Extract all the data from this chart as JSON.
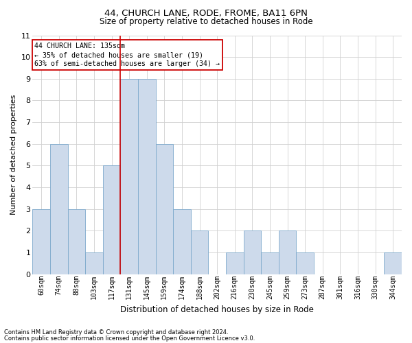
{
  "title1": "44, CHURCH LANE, RODE, FROME, BA11 6PN",
  "title2": "Size of property relative to detached houses in Rode",
  "xlabel": "Distribution of detached houses by size in Rode",
  "ylabel": "Number of detached properties",
  "categories": [
    "60sqm",
    "74sqm",
    "88sqm",
    "103sqm",
    "117sqm",
    "131sqm",
    "145sqm",
    "159sqm",
    "174sqm",
    "188sqm",
    "202sqm",
    "216sqm",
    "230sqm",
    "245sqm",
    "259sqm",
    "273sqm",
    "287sqm",
    "301sqm",
    "316sqm",
    "330sqm",
    "344sqm"
  ],
  "values": [
    3,
    6,
    3,
    1,
    5,
    9,
    9,
    6,
    3,
    2,
    0,
    1,
    2,
    1,
    2,
    1,
    0,
    0,
    0,
    0,
    1
  ],
  "bar_color": "#cddaeb",
  "bar_edge_color": "#7da9cc",
  "grid_color": "#d0d0d0",
  "vline_x": 5.0,
  "vline_color": "#cc0000",
  "annotation_text": "44 CHURCH LANE: 135sqm\n← 35% of detached houses are smaller (19)\n63% of semi-detached houses are larger (34) →",
  "annotation_box_color": "#cc0000",
  "ylim": [
    0,
    11
  ],
  "yticks": [
    0,
    1,
    2,
    3,
    4,
    5,
    6,
    7,
    8,
    9,
    10,
    11
  ],
  "footer1": "Contains HM Land Registry data © Crown copyright and database right 2024.",
  "footer2": "Contains public sector information licensed under the Open Government Licence v3.0.",
  "bg_color": "#ffffff",
  "title1_fontsize": 9.5,
  "title2_fontsize": 8.5,
  "ylabel_fontsize": 8.0,
  "xlabel_fontsize": 8.5,
  "tick_fontsize": 7.0,
  "annot_fontsize": 7.2,
  "footer_fontsize": 6.0
}
